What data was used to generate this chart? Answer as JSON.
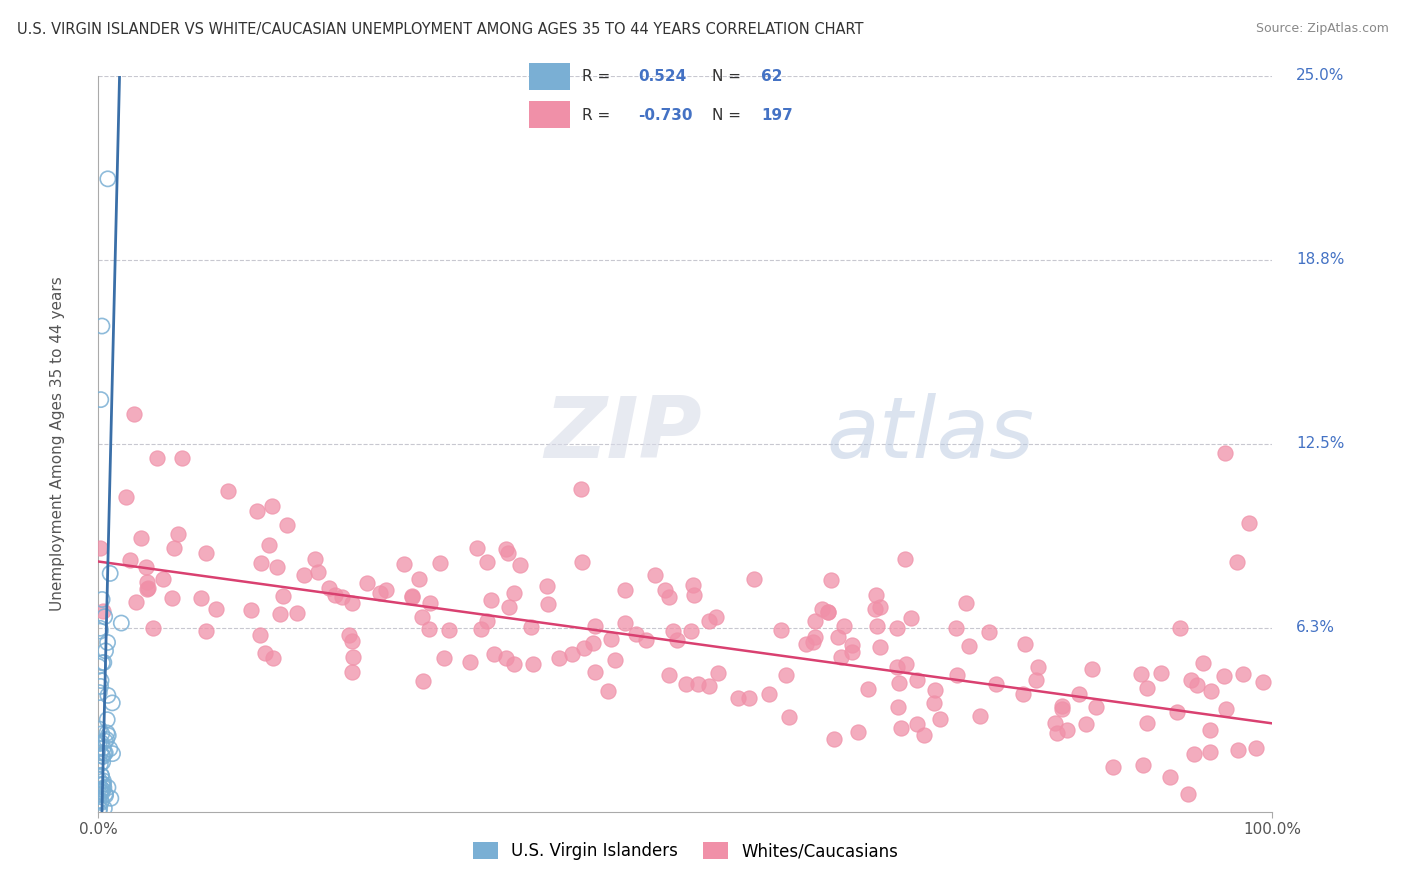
{
  "title": "U.S. VIRGIN ISLANDER VS WHITE/CAUCASIAN UNEMPLOYMENT AMONG AGES 35 TO 44 YEARS CORRELATION CHART",
  "source": "Source: ZipAtlas.com",
  "ylabel": "Unemployment Among Ages 35 to 44 years",
  "xlim": [
    0,
    100
  ],
  "ylim": [
    0,
    25
  ],
  "ytick_vals": [
    6.25,
    12.5,
    18.75,
    25.0
  ],
  "ytick_labels": [
    "6.3%",
    "12.5%",
    "18.8%",
    "25.0%"
  ],
  "xtick_vals": [
    0,
    100
  ],
  "xtick_labels": [
    "0.0%",
    "100.0%"
  ],
  "color_vi": "#7aafd4",
  "color_vi_line": "#3a6fa8",
  "color_wc": "#f090a8",
  "color_wc_line": "#d94070",
  "color_label": "#4472c4",
  "watermark_zip": "ZIP",
  "watermark_atlas": "atlas",
  "vi_r": 0.524,
  "vi_n": 62,
  "wc_r": -0.73,
  "wc_n": 197,
  "wc_trend_x0": 0,
  "wc_trend_y0": 8.5,
  "wc_trend_x1": 100,
  "wc_trend_y1": 3.0,
  "vi_trend_x0": 0.3,
  "vi_trend_y0": 0,
  "vi_trend_x1": 1.8,
  "vi_trend_y1": 25,
  "background_color": "#ffffff",
  "grid_color": "#c8c8d0"
}
